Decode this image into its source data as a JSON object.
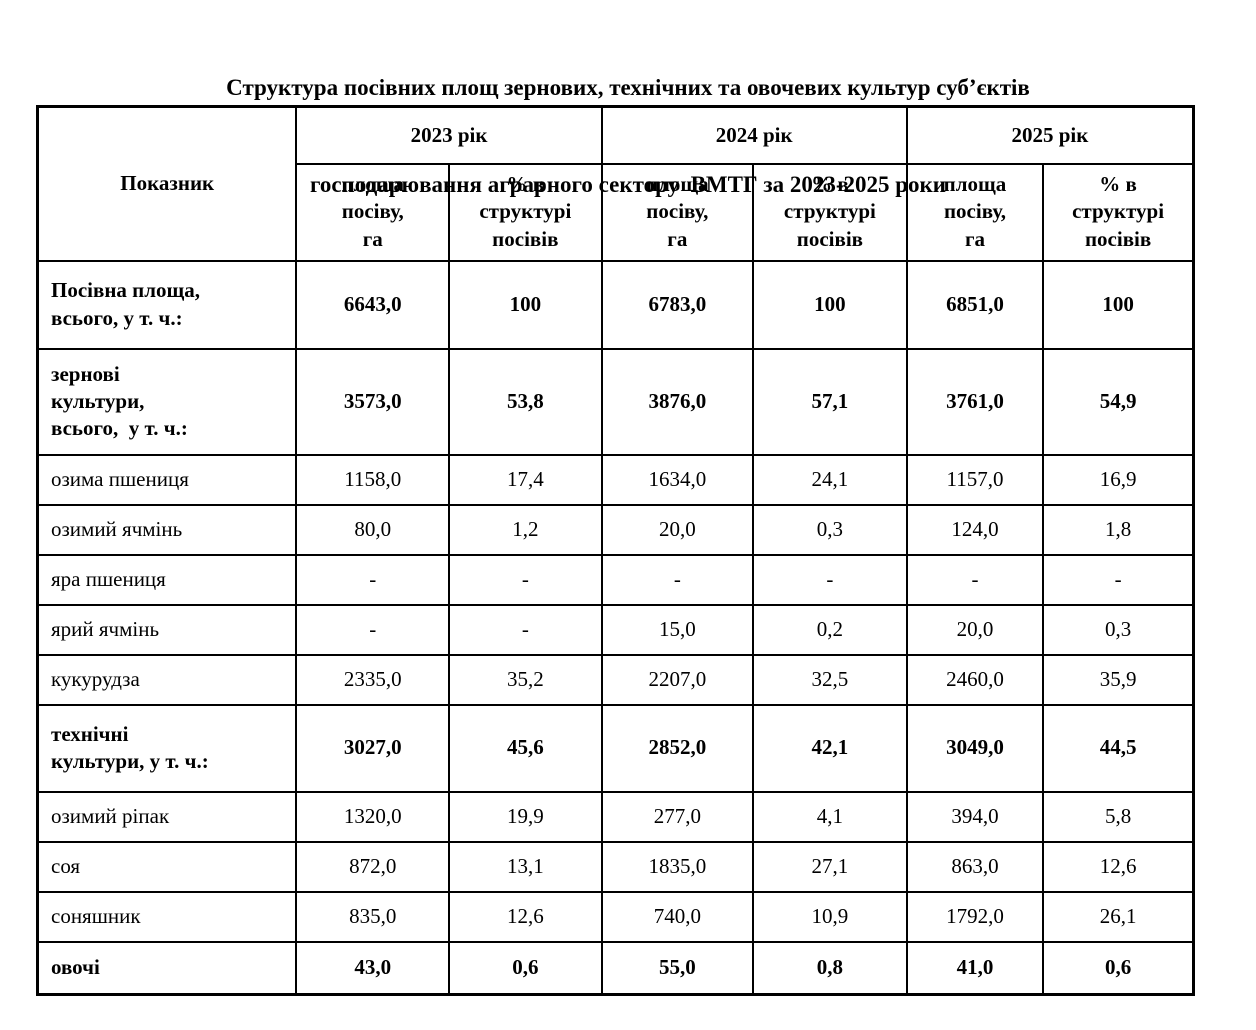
{
  "title": {
    "line1": "Структура посівних площ зернових, технічних та овочевих культур суб’єктів",
    "line2": "господарювання аграрного сектору  ВМТГ за 2023-2025 роки"
  },
  "table": {
    "indicator_header": "Показник",
    "year_headers": [
      "2023 рік",
      "2024 рік",
      "2025 рік"
    ],
    "col_area": "площа\nпосіву,\nга",
    "col_pct": "% в\nструктурі\nпосівів",
    "rows": [
      {
        "label": "Посівна площа,\nвсього, у т. ч.:",
        "bold": true,
        "values": [
          "6643,0",
          "100",
          "6783,0",
          "100",
          "6851,0",
          "100"
        ]
      },
      {
        "label": "зернові\nкультури,\nвсього,  у т. ч.:",
        "bold": true,
        "values": [
          "3573,0",
          "53,8",
          "3876,0",
          "57,1",
          "3761,0",
          "54,9"
        ]
      },
      {
        "label": "озима пшениця",
        "bold": false,
        "values": [
          "1158,0",
          "17,4",
          "1634,0",
          "24,1",
          "1157,0",
          "16,9"
        ]
      },
      {
        "label": "озимий ячмінь",
        "bold": false,
        "values": [
          "80,0",
          "1,2",
          "20,0",
          "0,3",
          "124,0",
          "1,8"
        ]
      },
      {
        "label": "яра пшениця",
        "bold": false,
        "values": [
          "-",
          "-",
          "-",
          "-",
          "-",
          "-"
        ]
      },
      {
        "label": "ярий ячмінь",
        "bold": false,
        "values": [
          "-",
          "-",
          "15,0",
          "0,2",
          "20,0",
          "0,3"
        ]
      },
      {
        "label": "кукурудза",
        "bold": false,
        "values": [
          "2335,0",
          "35,2",
          "2207,0",
          "32,5",
          "2460,0",
          "35,9"
        ]
      },
      {
        "label": "технічні\nкультури, у т. ч.:",
        "bold": true,
        "values": [
          "3027,0",
          "45,6",
          "2852,0",
          "42,1",
          "3049,0",
          "44,5"
        ]
      },
      {
        "label": "озимий ріпак",
        "bold": false,
        "values": [
          "1320,0",
          "19,9",
          "277,0",
          "4,1",
          "394,0",
          "5,8"
        ]
      },
      {
        "label": "соя",
        "bold": false,
        "values": [
          "872,0",
          "13,1",
          "1835,0",
          "27,1",
          "863,0",
          "12,6"
        ]
      },
      {
        "label": "соняшник",
        "bold": false,
        "values": [
          "835,0",
          "12,6",
          "740,0",
          "10,9",
          "1792,0",
          "26,1"
        ]
      },
      {
        "label": "овочі",
        "bold": true,
        "values": [
          "43,0",
          "0,6",
          "55,0",
          "0,8",
          "41,0",
          "0,6"
        ]
      }
    ]
  }
}
